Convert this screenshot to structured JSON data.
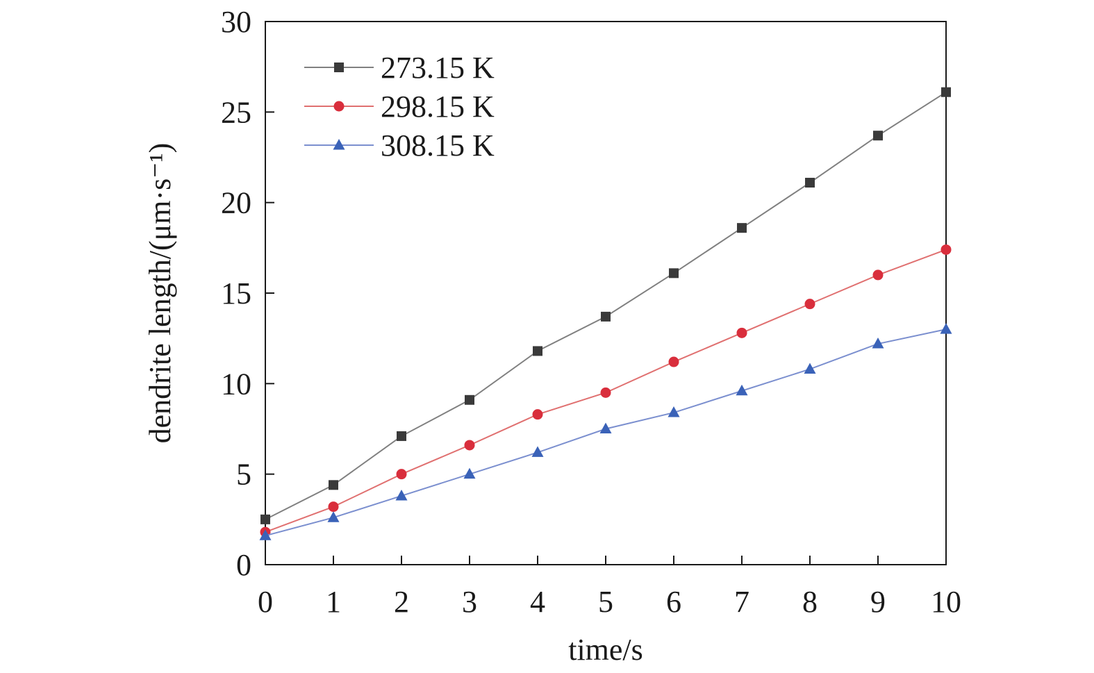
{
  "chart_data": {
    "type": "line",
    "xlabel": "time/s",
    "ylabel": "dendrite length/(μm·s⁻¹)",
    "xlim": [
      0,
      10
    ],
    "ylim": [
      0,
      30
    ],
    "xticks": [
      0,
      1,
      2,
      3,
      4,
      5,
      6,
      7,
      8,
      9,
      10
    ],
    "yticks": [
      0,
      5,
      10,
      15,
      20,
      25,
      30
    ],
    "grid": false,
    "legend_position": "top-left",
    "x": [
      0,
      1,
      2,
      3,
      4,
      5,
      6,
      7,
      8,
      9,
      10
    ],
    "series": [
      {
        "name": "273.15 K",
        "marker": "square",
        "line_color": "#808080",
        "marker_color": "#3a3a3a",
        "values": [
          2.5,
          4.4,
          7.1,
          9.1,
          11.8,
          13.7,
          16.1,
          18.6,
          21.1,
          23.7,
          26.1
        ]
      },
      {
        "name": "298.15 K",
        "marker": "circle",
        "line_color": "#e07070",
        "marker_color": "#d92e3c",
        "values": [
          1.8,
          3.2,
          5.0,
          6.6,
          8.3,
          9.5,
          11.2,
          12.8,
          14.4,
          16.0,
          17.4
        ]
      },
      {
        "name": "308.15 K",
        "marker": "triangle",
        "line_color": "#7b8fcf",
        "marker_color": "#3a62b8",
        "values": [
          1.6,
          2.6,
          3.8,
          5.0,
          6.2,
          7.5,
          8.4,
          9.6,
          10.8,
          12.2,
          13.0
        ]
      }
    ]
  }
}
